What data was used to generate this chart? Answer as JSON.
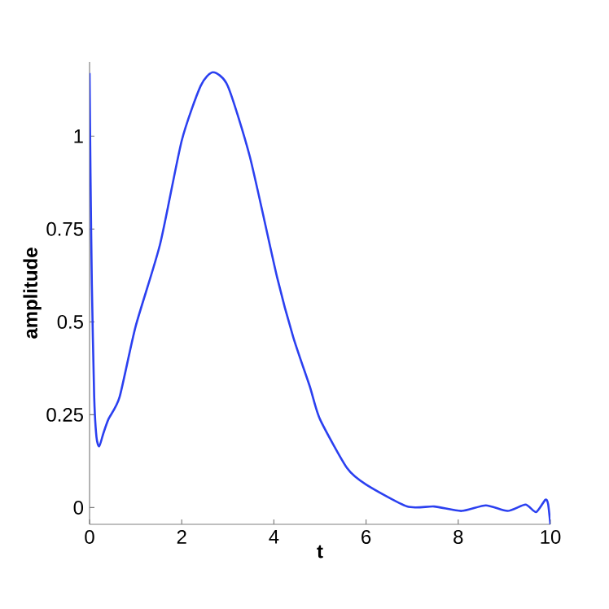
{
  "chart_data": {
    "type": "line",
    "xlabel": "t",
    "ylabel": "amplitude",
    "xlim": [
      0,
      10
    ],
    "ylim": [
      -0.045,
      1.2
    ],
    "xticks": [
      0,
      2,
      4,
      6,
      8,
      10
    ],
    "yticks": [
      0,
      0.25,
      0.5,
      0.75,
      1
    ],
    "grid": false,
    "marker": "none",
    "line_style": "solid",
    "series": [
      {
        "color": "#2b40f0",
        "x": [
          0,
          0.02,
          0.05,
          0.1,
          0.15,
          0.21,
          0.3,
          0.41,
          0.65,
          1.0,
          1.53,
          2.0,
          2.41,
          2.68,
          3.0,
          3.48,
          4.07,
          4.42,
          4.78,
          5.0,
          5.59,
          6.0,
          6.89,
          7.48,
          8.07,
          8.6,
          9.07,
          9.46,
          9.69,
          9.89,
          9.95,
          10
        ],
        "values": [
          1.17,
          0.9,
          0.6,
          0.3,
          0.19,
          0.165,
          0.2,
          0.238,
          0.297,
          0.488,
          0.709,
          0.988,
          1.135,
          1.172,
          1.135,
          0.944,
          0.62,
          0.459,
          0.326,
          0.238,
          0.106,
          0.062,
          0.003,
          0.003,
          -0.009,
          0.006,
          -0.009,
          0.008,
          -0.012,
          0.021,
          0.01,
          -0.045
        ]
      }
    ]
  }
}
